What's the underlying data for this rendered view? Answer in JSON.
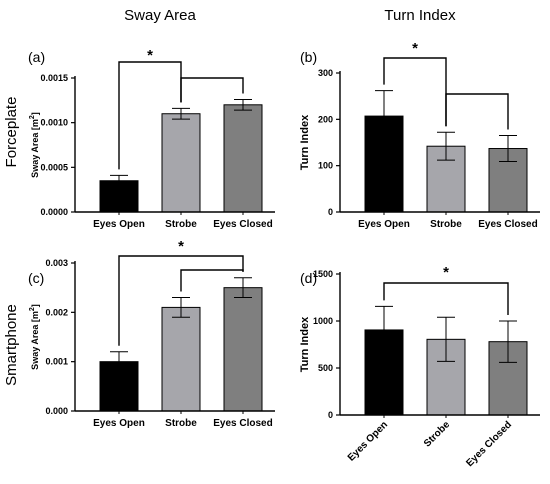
{
  "headers": {
    "col_left": "Sway Area",
    "col_right": "Turn Index",
    "row_top": "Forceplate",
    "row_bottom": "Smartphone"
  },
  "colors": {
    "eyes_open": "#000000",
    "strobe": "#a6a6ab",
    "eyes_closed": "#7f7f7f"
  },
  "chart_data": [
    {
      "panel": "(a)",
      "type": "bar",
      "categories": [
        "Eyes Open",
        "Strobe",
        "Eyes Closed"
      ],
      "values": [
        0.00035,
        0.0011,
        0.0012
      ],
      "errors": [
        6e-05,
        6e-05,
        6e-05
      ],
      "ylabel_prefix": "Sway Area [m",
      "ylabel_sup": "2",
      "ylabel_suffix": "]",
      "ylim": [
        0,
        0.0015
      ],
      "yticks": [
        0,
        0.0005,
        0.001,
        0.0015
      ],
      "ytick_labels": [
        "0.0000",
        "0.0005",
        "0.0010",
        "0.0015"
      ],
      "significance": [
        {
          "from": 0,
          "to": 1,
          "label": "*"
        },
        {
          "from": 1,
          "to": 2,
          "label": ""
        }
      ]
    },
    {
      "panel": "(b)",
      "type": "bar",
      "categories": [
        "Eyes Open",
        "Strobe",
        "Eyes Closed"
      ],
      "values": [
        207,
        142,
        137
      ],
      "errors": [
        55,
        30,
        28
      ],
      "ylabel": "Turn Index",
      "ylim": [
        0,
        300
      ],
      "yticks": [
        0,
        100,
        200,
        300
      ],
      "ytick_labels": [
        "0",
        "100",
        "200",
        "300"
      ],
      "significance": [
        {
          "from": 0,
          "to": 1,
          "label": "*"
        },
        {
          "from": 1,
          "to": 2,
          "label": ""
        }
      ]
    },
    {
      "panel": "(c)",
      "type": "bar",
      "categories": [
        "Eyes Open",
        "Strobe",
        "Eyes Closed"
      ],
      "values": [
        0.001,
        0.0021,
        0.0025
      ],
      "errors": [
        0.0002,
        0.0002,
        0.0002
      ],
      "ylabel_prefix": "Sway Area [m",
      "ylabel_sup": "2",
      "ylabel_suffix": "]",
      "ylim": [
        0,
        0.003
      ],
      "yticks": [
        0,
        0.001,
        0.002,
        0.003
      ],
      "ytick_labels": [
        "0.000",
        "0.001",
        "0.002",
        "0.003"
      ],
      "significance": [
        {
          "from": 0,
          "to": 2,
          "label": "*"
        },
        {
          "from": 1,
          "to": 2,
          "label": ""
        }
      ]
    },
    {
      "panel": "(d)",
      "type": "bar",
      "categories": [
        "Eyes Open",
        "Strobe",
        "Eyes Closed"
      ],
      "values": [
        905,
        805,
        780
      ],
      "errors": [
        250,
        235,
        220
      ],
      "ylabel": "Turn Index",
      "ylim": [
        0,
        1500
      ],
      "yticks": [
        0,
        500,
        1000,
        1500
      ],
      "ytick_labels": [
        "0",
        "500",
        "1000",
        "1500"
      ],
      "rotated_categories": true,
      "significance": [
        {
          "from": 0,
          "to": 2,
          "label": "*"
        }
      ]
    }
  ]
}
